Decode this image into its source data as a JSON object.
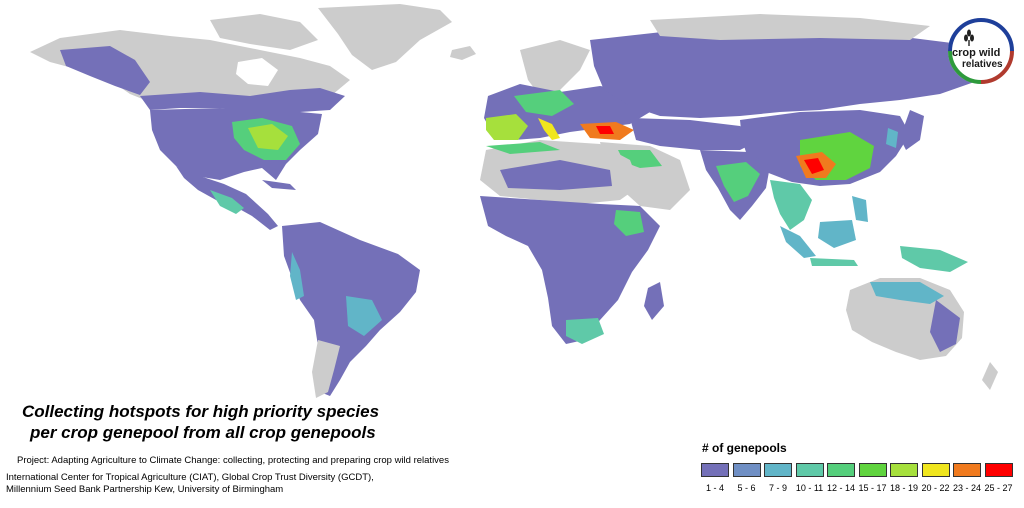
{
  "map": {
    "background": "#ffffff",
    "land_nodata_color": "#cccccc",
    "border_color": "#ffffff"
  },
  "title": {
    "line1": "Collecting hotspots for high priority species",
    "line2": "per crop genepool from all crop genepools"
  },
  "project": "Project: Adapting Agriculture to Climate Change: collecting, protecting and preparing crop wild relatives",
  "institutions": {
    "line1": "International Center for Tropical Agriculture (CIAT), Global Crop Trust Diversity (GCDT),",
    "line2": "Millennium Seed Bank Partnership Kew, University of Birmingham"
  },
  "legend": {
    "title": "# of genepools",
    "items": [
      {
        "label": "1 - 4",
        "color": "#7470b8"
      },
      {
        "label": "5 - 6",
        "color": "#6f8fc4"
      },
      {
        "label": "7 - 9",
        "color": "#61b5c8"
      },
      {
        "label": "10 - 11",
        "color": "#5fc9a8"
      },
      {
        "label": "12 - 14",
        "color": "#55cf7c"
      },
      {
        "label": "15 - 17",
        "color": "#60d43f"
      },
      {
        "label": "18 - 19",
        "color": "#a6e03c"
      },
      {
        "label": "20 - 22",
        "color": "#f0e61e"
      },
      {
        "label": "23 - 24",
        "color": "#f07a1e"
      },
      {
        "label": "25 - 27",
        "color": "#ff0000"
      }
    ]
  },
  "logo": {
    "word1": "crop",
    "word2": "wild",
    "word3": "relatives",
    "ring_top_color": "#1e3f9a",
    "ring_left_color": "#2e9a3c",
    "ring_bottom_color": "#b03a2e",
    "icon": "wheat-icon"
  }
}
